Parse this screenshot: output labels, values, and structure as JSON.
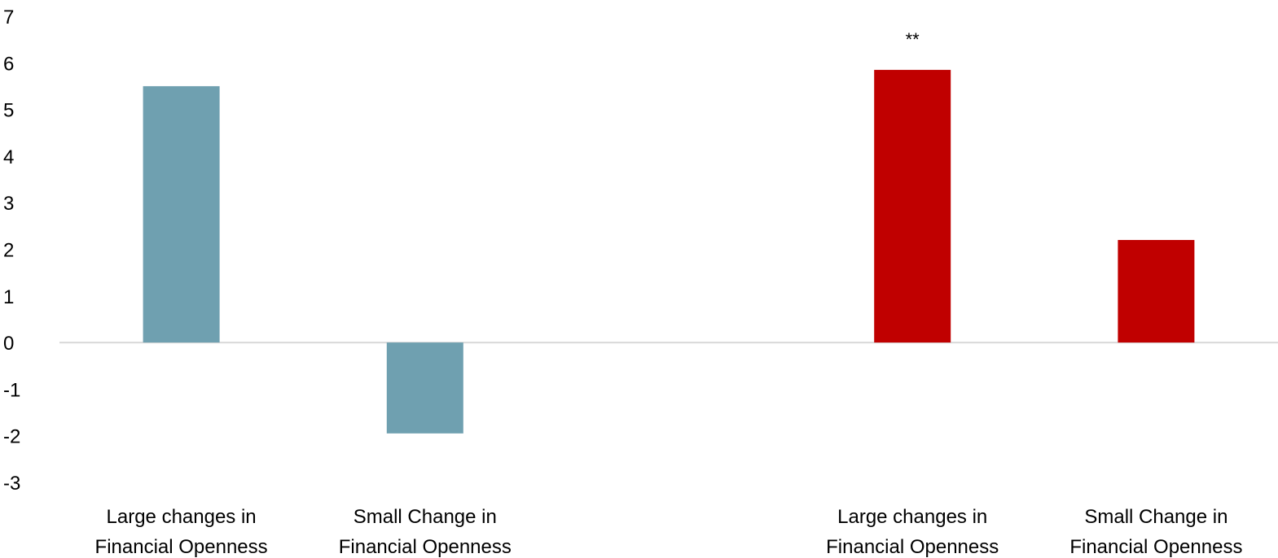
{
  "chart_data": {
    "type": "bar",
    "ylim": [
      -3,
      7
    ],
    "yticks": [
      "7",
      "6",
      "5",
      "4",
      "3",
      "2",
      "1",
      "0",
      "-1",
      "-2",
      "-3"
    ],
    "grid": false,
    "categories": [
      [
        "Large changes in",
        "Financial Openness"
      ],
      [
        "Small Change in",
        "Financial Openness"
      ],
      [
        "",
        ""
      ],
      [
        "Large changes in",
        "Financial Openness"
      ],
      [
        "Small Change in",
        "Financial Openness"
      ]
    ],
    "values": [
      5.5,
      -1.95,
      null,
      5.85,
      2.2
    ],
    "bar_colors": [
      "#6fa0b0",
      "#6fa0b0",
      null,
      "#c00000",
      "#c00000"
    ],
    "annotations": [
      {
        "category_index": 3,
        "text": "**"
      }
    ],
    "axis_color": "#d9d9d9"
  }
}
